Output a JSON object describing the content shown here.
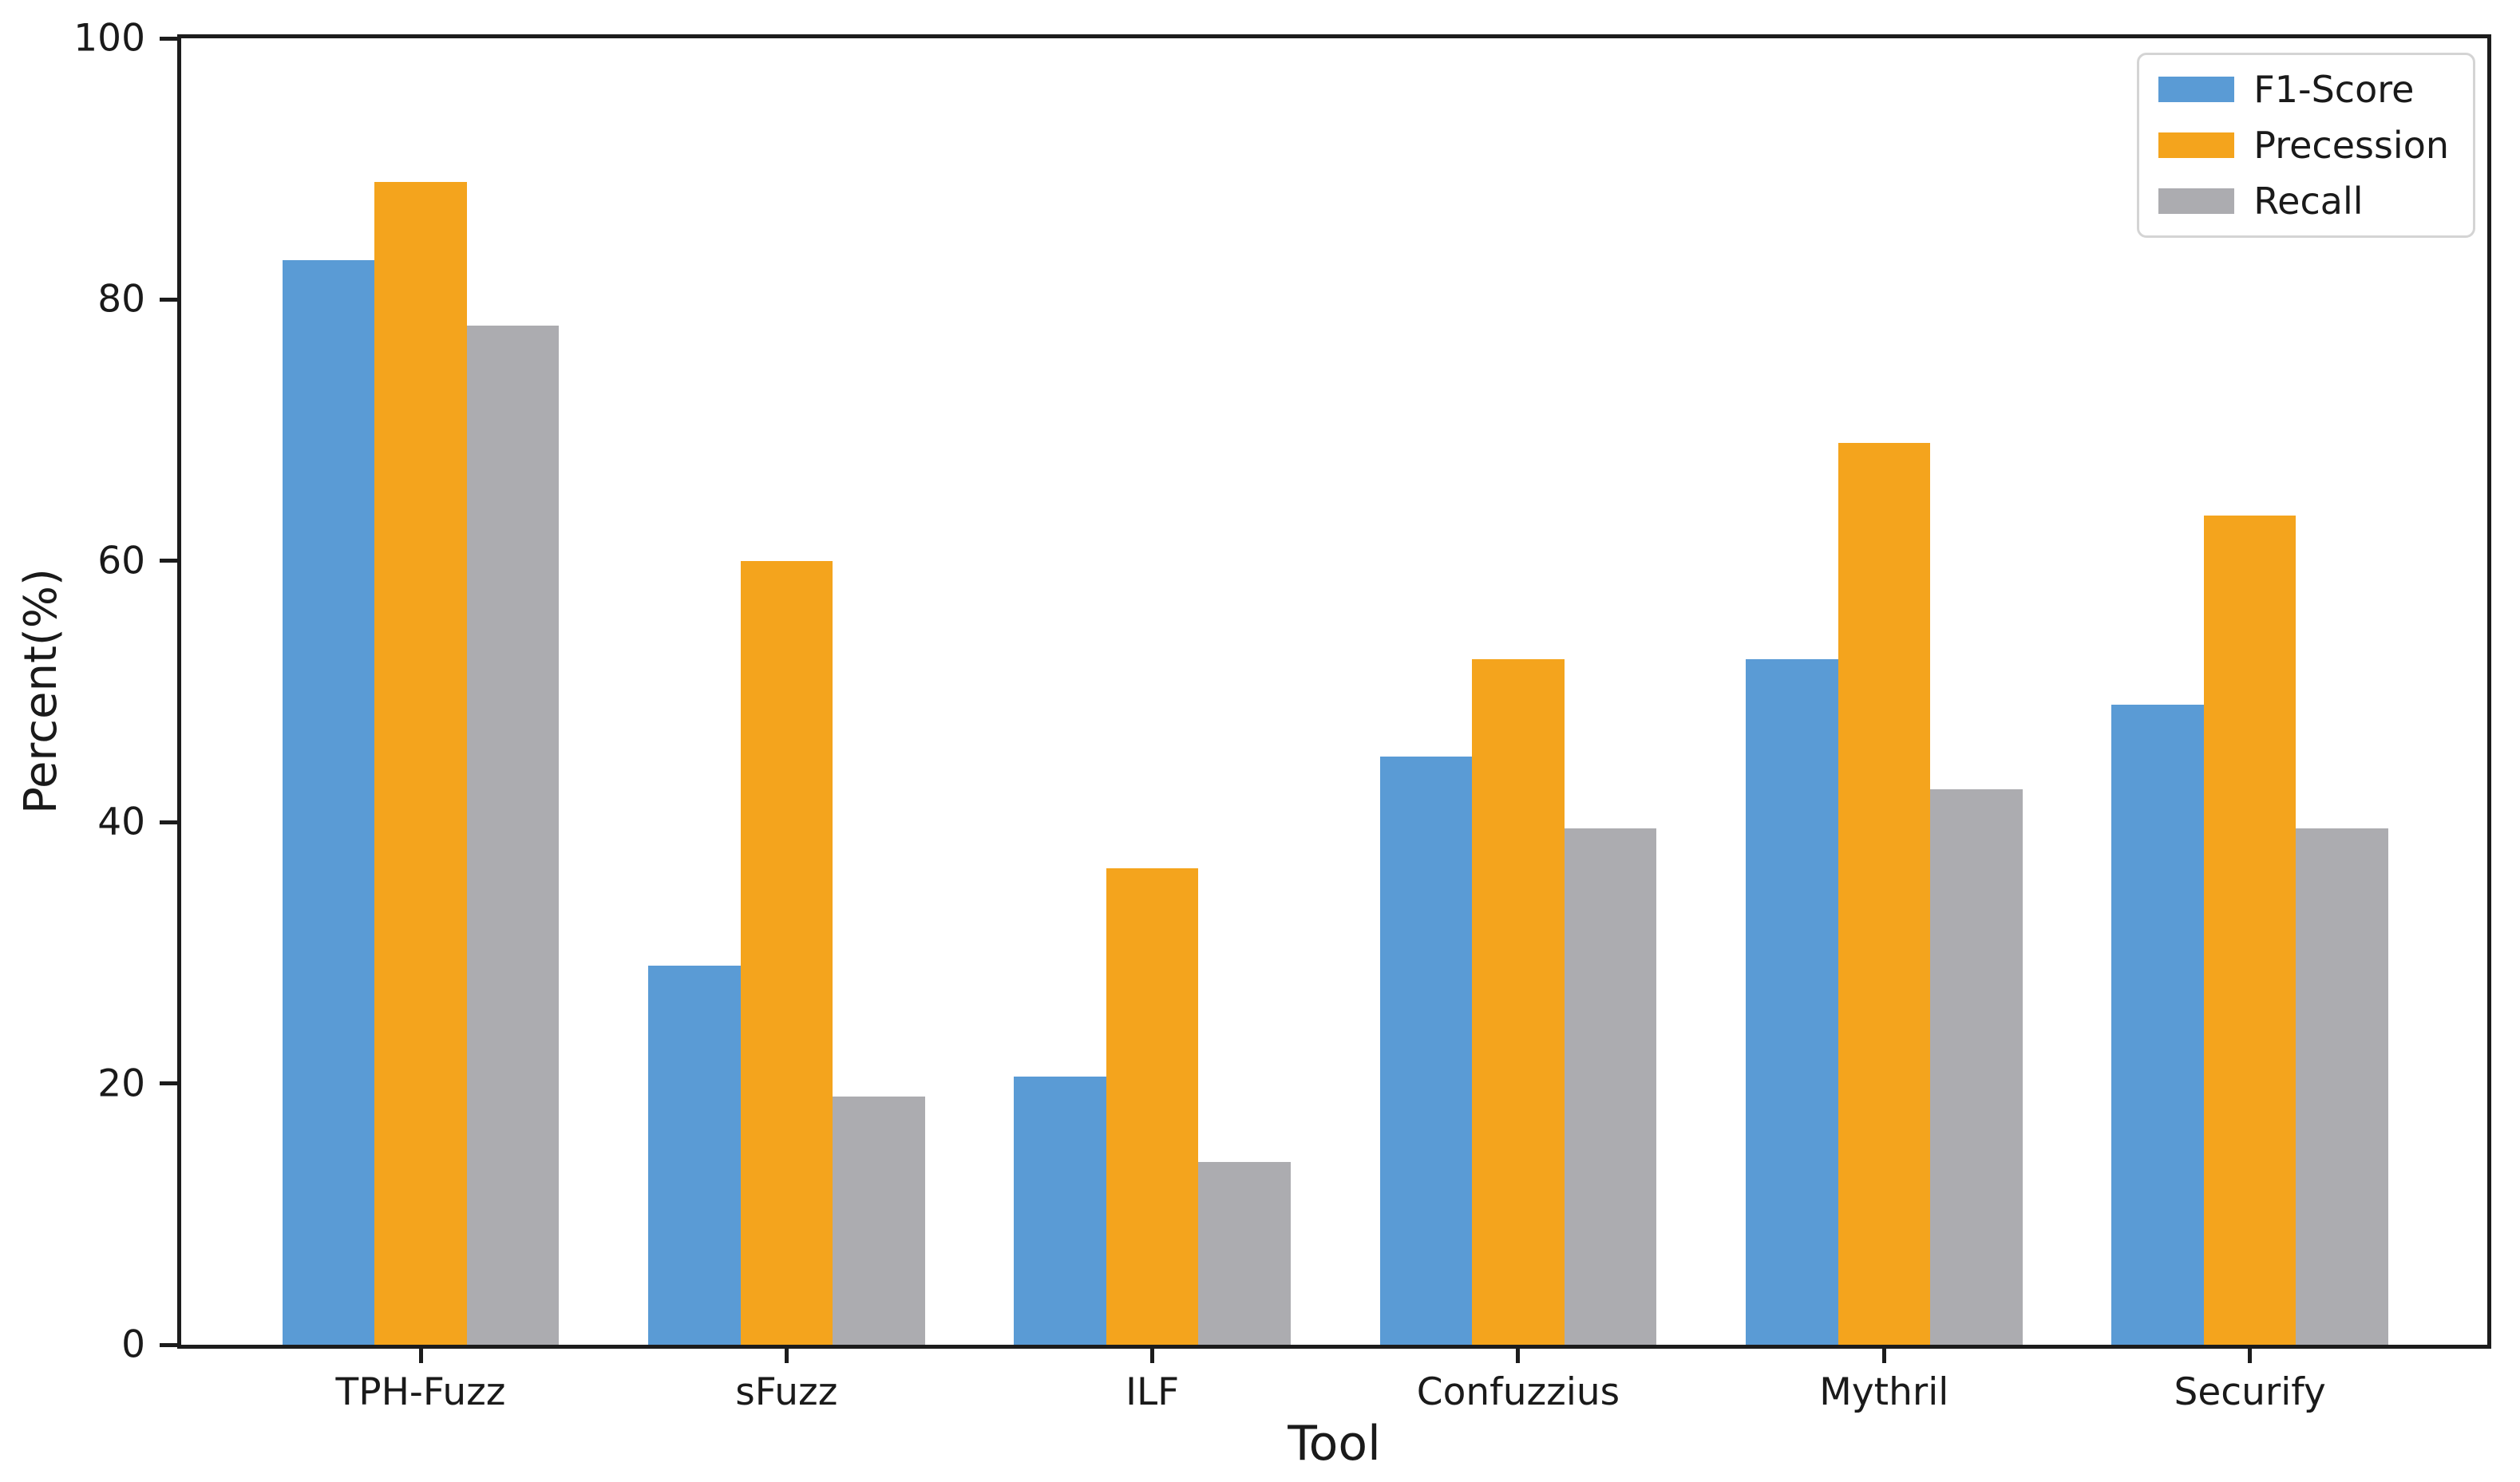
{
  "chart_data": {
    "type": "bar",
    "title": "",
    "xlabel": "Tool",
    "ylabel": "Percent(%)",
    "categories": [
      "TPH-Fuzz",
      "sFuzz",
      "ILF",
      "Confuzzius",
      "Mythril",
      "Securify"
    ],
    "series": [
      {
        "name": "F1-Score",
        "color": "#5A9BD5",
        "values": [
          83,
          29,
          20.5,
          45,
          52.5,
          49
        ]
      },
      {
        "name": "Precession",
        "color": "#F4A41D",
        "values": [
          89,
          60,
          36.5,
          52.5,
          69,
          63.5
        ]
      },
      {
        "name": "Recall",
        "color": "#ACACB0",
        "values": [
          78,
          19,
          14,
          39.5,
          42.5,
          39.5
        ]
      }
    ],
    "ylim": [
      0,
      100
    ],
    "yticks": [
      0,
      20,
      40,
      60,
      80,
      100
    ],
    "grid": false,
    "legend_position": "upper right"
  },
  "colors": {
    "axis": "#1c1c1c",
    "text": "#1a1a1a",
    "legend_border": "#d4d4d4",
    "background": "#ffffff"
  }
}
